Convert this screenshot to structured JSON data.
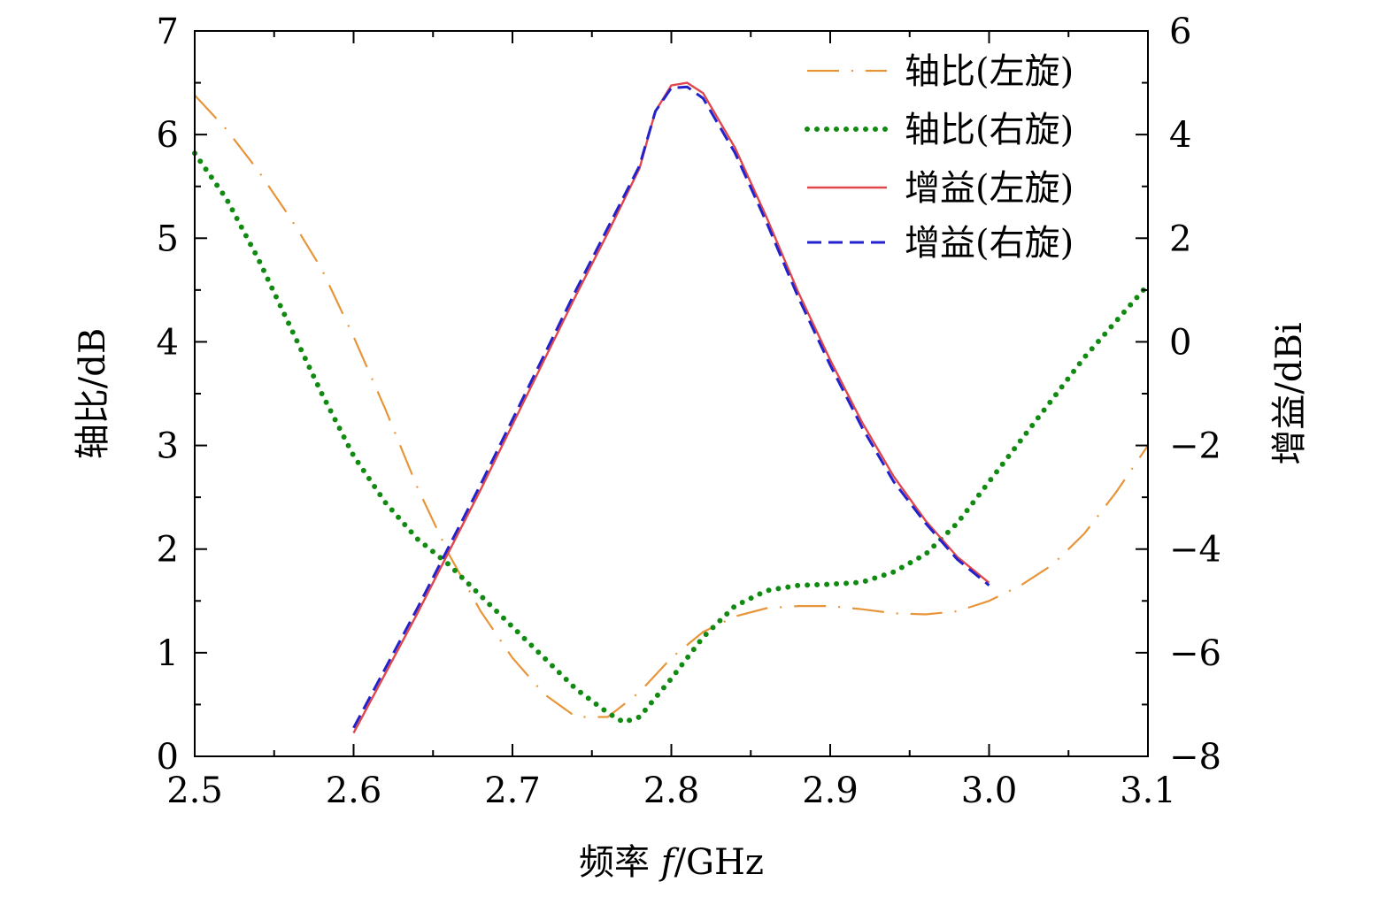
{
  "chart_data": {
    "type": "line",
    "xlabel_prefix": "频率 ",
    "xlabel_var": "f",
    "xlabel_unit": "/GHz",
    "ylabel_left": "轴比/dB",
    "ylabel_right": "增益/dBi",
    "xlim": [
      2.5,
      3.1
    ],
    "ylim_left": [
      0,
      7
    ],
    "ylim_right": [
      -8,
      6
    ],
    "x_ticks": [
      "2.5",
      "2.6",
      "2.7",
      "2.8",
      "2.9",
      "3.0",
      "3.1"
    ],
    "x_tick_values": [
      2.5,
      2.6,
      2.7,
      2.8,
      2.9,
      3.0,
      3.1
    ],
    "y_left_ticks": [
      "0",
      "1",
      "2",
      "3",
      "4",
      "5",
      "6",
      "7"
    ],
    "y_left_tick_values": [
      0,
      1,
      2,
      3,
      4,
      5,
      6,
      7
    ],
    "y_right_ticks": [
      "−8",
      "−6",
      "−4",
      "−2",
      "0",
      "2",
      "4",
      "6"
    ],
    "y_right_tick_values": [
      -8,
      -6,
      -4,
      -2,
      0,
      2,
      4,
      6
    ],
    "legend_position": "top-right",
    "series": [
      {
        "name": "轴比(左旋)",
        "axis": "left",
        "color": "#e8953a",
        "style": "dashdot",
        "x": [
          2.5,
          2.52,
          2.54,
          2.56,
          2.58,
          2.6,
          2.62,
          2.64,
          2.66,
          2.68,
          2.7,
          2.72,
          2.74,
          2.76,
          2.78,
          2.8,
          2.82,
          2.84,
          2.86,
          2.88,
          2.9,
          2.92,
          2.94,
          2.96,
          2.98,
          3.0,
          3.02,
          3.04,
          3.06,
          3.08,
          3.1
        ],
        "y": [
          6.38,
          6.05,
          5.65,
          5.2,
          4.7,
          4.05,
          3.35,
          2.6,
          1.95,
          1.4,
          0.95,
          0.6,
          0.38,
          0.38,
          0.62,
          0.95,
          1.2,
          1.35,
          1.43,
          1.45,
          1.45,
          1.42,
          1.38,
          1.37,
          1.4,
          1.5,
          1.65,
          1.85,
          2.15,
          2.55,
          3.0
        ]
      },
      {
        "name": "轴比(右旋)",
        "axis": "left",
        "color": "#118a11",
        "style": "dotted",
        "x": [
          2.5,
          2.52,
          2.54,
          2.56,
          2.58,
          2.6,
          2.62,
          2.64,
          2.66,
          2.68,
          2.7,
          2.72,
          2.74,
          2.76,
          2.77,
          2.78,
          2.8,
          2.82,
          2.84,
          2.86,
          2.88,
          2.9,
          2.92,
          2.94,
          2.96,
          2.98,
          3.0,
          3.02,
          3.04,
          3.06,
          3.08,
          3.1
        ],
        "y": [
          5.82,
          5.38,
          4.8,
          4.15,
          3.5,
          2.9,
          2.45,
          2.1,
          1.85,
          1.55,
          1.25,
          0.95,
          0.65,
          0.42,
          0.33,
          0.38,
          0.75,
          1.15,
          1.45,
          1.6,
          1.65,
          1.66,
          1.68,
          1.78,
          1.95,
          2.25,
          2.65,
          3.05,
          3.45,
          3.85,
          4.2,
          4.55
        ]
      },
      {
        "name": "增益(左旋)",
        "axis": "right",
        "color": "#e0474c",
        "style": "solid",
        "x": [
          2.6,
          2.62,
          2.64,
          2.66,
          2.68,
          2.7,
          2.72,
          2.74,
          2.76,
          2.78,
          2.79,
          2.8,
          2.81,
          2.82,
          2.84,
          2.86,
          2.88,
          2.9,
          2.92,
          2.94,
          2.96,
          2.98,
          3.0
        ],
        "y": [
          -7.55,
          -6.4,
          -5.25,
          -4.05,
          -2.85,
          -1.6,
          -0.35,
          0.9,
          2.1,
          3.35,
          4.45,
          4.95,
          5.0,
          4.8,
          3.75,
          2.4,
          0.95,
          -0.35,
          -1.55,
          -2.6,
          -3.45,
          -4.15,
          -4.65
        ]
      },
      {
        "name": "增益(右旋)",
        "axis": "right",
        "color": "#2222cc",
        "style": "dashed",
        "x": [
          2.6,
          2.62,
          2.64,
          2.66,
          2.68,
          2.7,
          2.72,
          2.74,
          2.76,
          2.78,
          2.79,
          2.8,
          2.81,
          2.82,
          2.84,
          2.86,
          2.88,
          2.9,
          2.92,
          2.94,
          2.96,
          2.98,
          3.0
        ],
        "y": [
          -7.45,
          -6.3,
          -5.15,
          -3.95,
          -2.75,
          -1.5,
          -0.25,
          1.0,
          2.2,
          3.4,
          4.45,
          4.9,
          4.92,
          4.7,
          3.65,
          2.3,
          0.85,
          -0.45,
          -1.65,
          -2.7,
          -3.5,
          -4.2,
          -4.7
        ]
      }
    ]
  }
}
